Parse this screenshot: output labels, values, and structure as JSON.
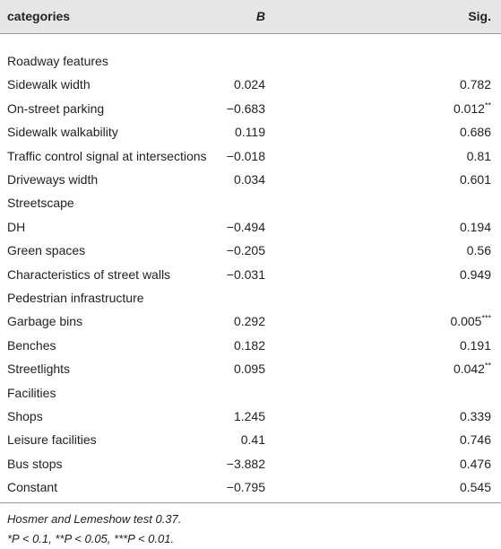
{
  "table": {
    "header": [
      "categories",
      "B",
      "Sig."
    ],
    "rows": [
      {
        "label": "Roadway features"
      },
      {
        "label": "Sidewalk width",
        "b": "0.024",
        "sig": "0.782"
      },
      {
        "label": "On-street parking",
        "b": "−0.683",
        "sig": "0.012",
        "mark": "**"
      },
      {
        "label": "Sidewalk walkability",
        "b": "0.119",
        "sig": "0.686"
      },
      {
        "label": "Traffic control signal at intersections",
        "b": "−0.018",
        "sig": "0.81"
      },
      {
        "label": "Driveways width",
        "b": "0.034",
        "sig": "0.601"
      },
      {
        "label": "Streetscape"
      },
      {
        "label": "DH",
        "b": "−0.494",
        "sig": "0.194"
      },
      {
        "label": "Green spaces",
        "b": "−0.205",
        "sig": "0.56"
      },
      {
        "label": "Characteristics of street walls",
        "b": "−0.031",
        "sig": "0.949"
      },
      {
        "label": "Pedestrian infrastructure"
      },
      {
        "label": "Garbage bins",
        "b": "0.292",
        "sig": "0.005",
        "mark": "***"
      },
      {
        "label": "Benches",
        "b": "0.182",
        "sig": "0.191"
      },
      {
        "label": "Streetlights",
        "b": "0.095",
        "sig": "0.042",
        "mark": "**"
      },
      {
        "label": "Facilities"
      },
      {
        "label": "Shops",
        "b": "1.245",
        "sig": "0.339"
      },
      {
        "label": "Leisure facilities",
        "b": "0.41",
        "sig": "0.746"
      },
      {
        "label": "Bus stops",
        "b": "−3.882",
        "sig": "0.476"
      },
      {
        "label": "Constant",
        "b": "−0.795",
        "sig": "0.545"
      }
    ],
    "notes": [
      "Hosmer and Lemeshow test 0.37.",
      "*P < 0.1, **P < 0.05, ***P < 0.01."
    ]
  }
}
